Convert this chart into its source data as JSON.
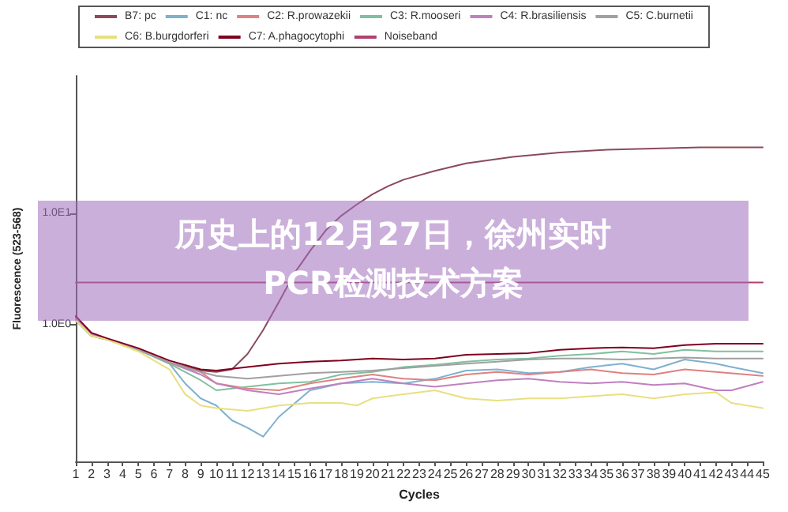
{
  "chart_data": {
    "type": "line",
    "title": "历史上的12月27日，徐州实时PCR检测技术方案",
    "xlabel": "Cycles",
    "ylabel": "Fluorescence (523-568)",
    "log": "y",
    "xlim": [
      1,
      45
    ],
    "xticks": [
      1,
      2,
      3,
      4,
      5,
      6,
      7,
      8,
      9,
      10,
      11,
      12,
      13,
      14,
      15,
      16,
      17,
      18,
      19,
      20,
      21,
      22,
      23,
      24,
      25,
      26,
      27,
      28,
      29,
      30,
      31,
      32,
      33,
      34,
      35,
      36,
      37,
      38,
      39,
      40,
      41,
      42,
      43,
      44,
      45
    ],
    "ylim": [
      0.06,
      170
    ],
    "yticks": [
      {
        "value": 1,
        "label": "1.0E0"
      },
      {
        "value": 10,
        "label": "1.0E1"
      }
    ],
    "grid": false,
    "legend": "top",
    "marker": "none",
    "line_style": "solid",
    "series": [
      {
        "name": "B7: pc",
        "color": "#8b4a5a",
        "x": [
          1,
          2,
          3,
          5,
          7,
          9,
          10,
          11,
          12,
          13,
          14,
          15,
          16,
          17,
          18,
          19,
          20,
          21,
          22,
          24,
          26,
          29,
          32,
          35,
          38,
          41,
          45
        ],
        "values": [
          1.1,
          0.8,
          0.75,
          0.6,
          0.46,
          0.39,
          0.38,
          0.4,
          0.55,
          0.9,
          1.6,
          2.9,
          4.6,
          7,
          9.5,
          12,
          14.8,
          17.5,
          20,
          24,
          28,
          32,
          35,
          37,
          38,
          39,
          39
        ]
      },
      {
        "name": "C1: nc",
        "color": "#7fb0d0",
        "x": [
          1,
          2,
          3,
          5,
          7,
          8,
          9,
          10,
          11,
          12,
          13,
          14,
          16,
          18,
          20,
          22,
          24,
          26,
          28,
          30,
          32,
          34,
          36,
          38,
          40,
          42,
          43,
          45
        ],
        "values": [
          1.15,
          0.82,
          0.75,
          0.6,
          0.45,
          0.3,
          0.22,
          0.19,
          0.14,
          0.12,
          0.1,
          0.15,
          0.26,
          0.3,
          0.31,
          0.3,
          0.33,
          0.39,
          0.4,
          0.37,
          0.38,
          0.42,
          0.45,
          0.4,
          0.49,
          0.45,
          0.42,
          0.37
        ]
      },
      {
        "name": "C2: R.prowazekii",
        "color": "#e08080",
        "x": [
          1,
          2,
          3,
          5,
          7,
          9,
          10,
          12,
          14,
          16,
          18,
          20,
          22,
          24,
          26,
          28,
          30,
          32,
          34,
          36,
          38,
          40,
          42,
          45
        ],
        "values": [
          1.12,
          0.8,
          0.74,
          0.6,
          0.46,
          0.38,
          0.3,
          0.27,
          0.26,
          0.3,
          0.33,
          0.36,
          0.33,
          0.32,
          0.36,
          0.38,
          0.36,
          0.38,
          0.4,
          0.37,
          0.36,
          0.4,
          0.38,
          0.35
        ]
      },
      {
        "name": "C3: R.mooseri",
        "color": "#80c0a0",
        "x": [
          1,
          2,
          3,
          5,
          7,
          9,
          10,
          12,
          14,
          16,
          18,
          20,
          22,
          24,
          26,
          28,
          30,
          32,
          34,
          36,
          38,
          40,
          42,
          45
        ],
        "values": [
          1.1,
          0.8,
          0.74,
          0.6,
          0.45,
          0.32,
          0.26,
          0.28,
          0.3,
          0.31,
          0.36,
          0.38,
          0.42,
          0.44,
          0.47,
          0.49,
          0.5,
          0.53,
          0.55,
          0.58,
          0.55,
          0.6,
          0.58,
          0.58
        ]
      },
      {
        "name": "C4: R.brasiliensis",
        "color": "#c080c0",
        "x": [
          1,
          2,
          3,
          5,
          7,
          9,
          10,
          12,
          14,
          16,
          18,
          20,
          22,
          24,
          26,
          28,
          30,
          32,
          34,
          36,
          38,
          40,
          42,
          43,
          45
        ],
        "values": [
          1.18,
          0.82,
          0.75,
          0.6,
          0.46,
          0.36,
          0.3,
          0.26,
          0.24,
          0.27,
          0.3,
          0.33,
          0.3,
          0.28,
          0.3,
          0.32,
          0.33,
          0.31,
          0.3,
          0.31,
          0.29,
          0.3,
          0.26,
          0.26,
          0.31
        ]
      },
      {
        "name": "C5: C.burnetii",
        "color": "#a0a0a0",
        "x": [
          1,
          2,
          3,
          5,
          7,
          9,
          10,
          12,
          14,
          16,
          18,
          20,
          22,
          24,
          26,
          28,
          30,
          32,
          34,
          36,
          38,
          40,
          42,
          45
        ],
        "values": [
          1.12,
          0.8,
          0.74,
          0.6,
          0.46,
          0.38,
          0.35,
          0.33,
          0.35,
          0.37,
          0.38,
          0.39,
          0.41,
          0.43,
          0.45,
          0.47,
          0.49,
          0.5,
          0.5,
          0.49,
          0.5,
          0.51,
          0.5,
          0.5
        ]
      },
      {
        "name": "C6: B.burgdorferi",
        "color": "#e8e080",
        "x": [
          1,
          2,
          3,
          5,
          7,
          8,
          9,
          10,
          12,
          14,
          16,
          18,
          19,
          20,
          22,
          24,
          26,
          28,
          30,
          32,
          34,
          36,
          38,
          40,
          42,
          43,
          45
        ],
        "values": [
          1.1,
          0.8,
          0.74,
          0.58,
          0.4,
          0.24,
          0.19,
          0.18,
          0.17,
          0.19,
          0.2,
          0.2,
          0.19,
          0.22,
          0.24,
          0.26,
          0.22,
          0.21,
          0.22,
          0.22,
          0.23,
          0.24,
          0.22,
          0.24,
          0.25,
          0.2,
          0.18
        ]
      },
      {
        "name": "C7: A.phagocytophi",
        "color": "#800020",
        "x": [
          1,
          2,
          3,
          5,
          7,
          9,
          10,
          12,
          14,
          16,
          18,
          20,
          22,
          24,
          26,
          28,
          30,
          32,
          34,
          36,
          38,
          40,
          42,
          45
        ],
        "values": [
          1.2,
          0.85,
          0.76,
          0.62,
          0.48,
          0.4,
          0.39,
          0.42,
          0.45,
          0.47,
          0.48,
          0.5,
          0.49,
          0.5,
          0.54,
          0.55,
          0.56,
          0.6,
          0.62,
          0.63,
          0.62,
          0.66,
          0.68,
          0.68
        ]
      },
      {
        "name": "Noiseband",
        "color": "#b04070",
        "x": [
          1,
          45
        ],
        "values": [
          2.4,
          2.4
        ]
      }
    ]
  }
}
